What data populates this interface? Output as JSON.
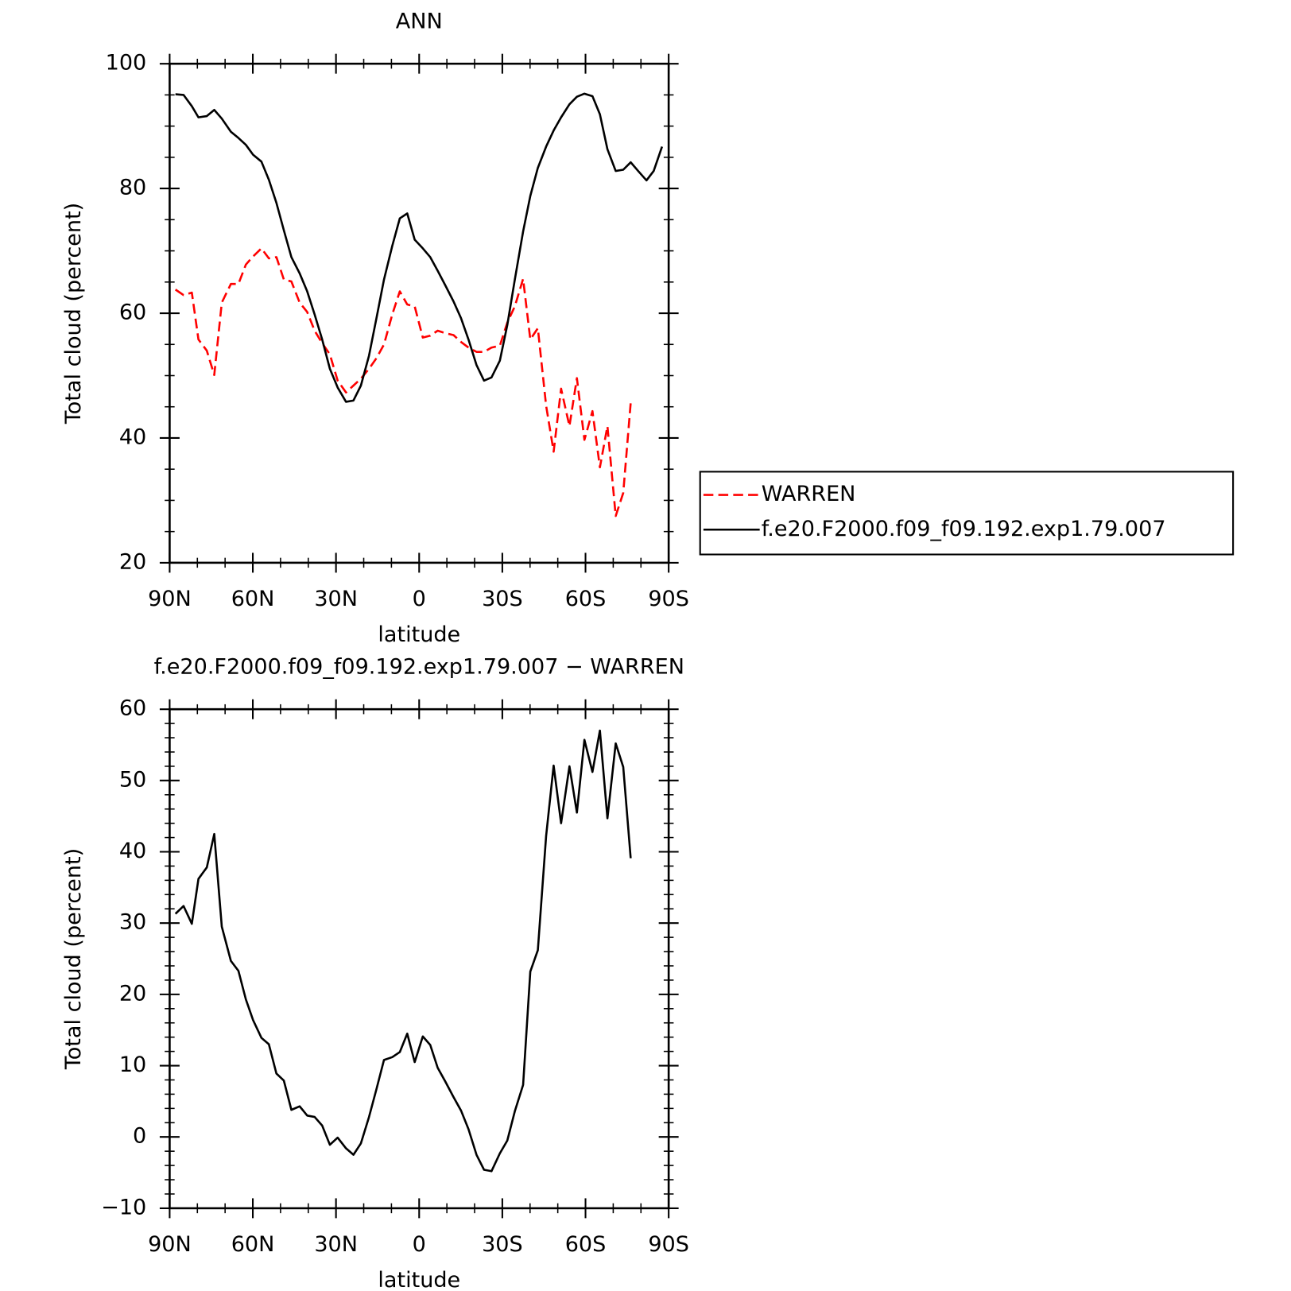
{
  "chart_data": [
    {
      "type": "line",
      "title": "ANN",
      "xlabel": "latitude",
      "ylabel": "Total cloud (percent)",
      "xlim": [
        90,
        -90
      ],
      "xticks": [
        {
          "value": 90,
          "label": "90N"
        },
        {
          "value": 60,
          "label": "60N"
        },
        {
          "value": 30,
          "label": "30N"
        },
        0,
        {
          "value": -30,
          "label": "30S"
        },
        {
          "value": -60,
          "label": "60S"
        },
        {
          "value": -90,
          "label": "90S"
        }
      ],
      "xminorticks": [
        80,
        70,
        50,
        40,
        20,
        10,
        -10,
        -20,
        -40,
        -50,
        -70,
        -80
      ],
      "ylim": [
        20,
        100
      ],
      "yticks": [
        20,
        40,
        60,
        80,
        100
      ],
      "yminorticks": [
        25,
        30,
        35,
        45,
        50,
        55,
        65,
        70,
        75,
        85,
        90,
        95
      ],
      "legend": "right",
      "series": [
        {
          "name": "WARREN",
          "color": "#ff0000",
          "line_style": "dashed",
          "x": [
            87.9,
            85.0,
            82.0,
            79.6,
            76.6,
            73.9,
            71.2,
            67.9,
            65.2,
            62.5,
            59.9,
            56.9,
            54.2,
            51.5,
            48.8,
            46.1,
            43.1,
            40.4,
            37.7,
            35.0,
            32.2,
            29.4,
            26.4,
            23.7,
            21.0,
            18.1,
            15.4,
            12.7,
            9.7,
            7.0,
            4.3,
            1.6,
            -1.3,
            -4.0,
            -6.7,
            -9.4,
            -12.4,
            -15.1,
            -17.8,
            -20.7,
            -23.4,
            -26.1,
            -29.1,
            -31.8,
            -34.5,
            -37.5,
            -40.1,
            -42.8,
            -45.8,
            -48.5,
            -51.2,
            -54.2,
            -56.9,
            -59.6,
            -62.5,
            -65.2,
            -67.9,
            -70.9,
            -73.6,
            -76.3
          ],
          "values": [
            63.8,
            62.9,
            63.3,
            55.8,
            54.0,
            50.1,
            61.7,
            64.7,
            64.7,
            67.8,
            69.1,
            70.4,
            68.8,
            69.0,
            65.4,
            65.1,
            61.7,
            60.2,
            57.2,
            55.2,
            53.4,
            49.2,
            47.3,
            48.4,
            49.5,
            51.1,
            52.8,
            55.0,
            59.8,
            63.5,
            61.4,
            61.1,
            56.1,
            56.4,
            57.2,
            56.8,
            56.5,
            55.4,
            54.5,
            53.8,
            53.8,
            54.5,
            54.8,
            58.5,
            61.1,
            65.5,
            55.8,
            57.6,
            45.2,
            37.8,
            47.9,
            41.9,
            49.6,
            39.7,
            44.3,
            35.3,
            41.9,
            27.5,
            31.2,
            45.6
          ]
        },
        {
          "name": "f.e20.F2000.f09_f09.192.exp1.79.007",
          "color": "#000000",
          "line_style": "solid",
          "x": [
            87.9,
            85.0,
            82.0,
            79.6,
            76.6,
            73.9,
            71.2,
            67.9,
            65.2,
            62.5,
            59.9,
            56.9,
            54.2,
            51.5,
            48.8,
            46.1,
            43.1,
            40.4,
            37.7,
            35.0,
            32.2,
            29.4,
            26.4,
            23.7,
            21.0,
            18.1,
            15.4,
            12.7,
            9.7,
            7.0,
            4.3,
            1.6,
            -1.3,
            -4.0,
            -6.7,
            -9.4,
            -12.4,
            -15.1,
            -17.8,
            -20.7,
            -23.4,
            -26.1,
            -29.1,
            -31.8,
            -34.5,
            -37.5,
            -40.1,
            -42.8,
            -45.8,
            -48.5,
            -51.2,
            -54.2,
            -56.9,
            -59.6,
            -62.5,
            -65.2,
            -67.9,
            -70.9,
            -73.6,
            -76.3,
            -79.0,
            -82.0,
            -84.6,
            -87.6
          ],
          "values": [
            95.1,
            95.0,
            93.2,
            91.4,
            91.6,
            92.6,
            91.2,
            89.1,
            88.1,
            87.0,
            85.4,
            84.3,
            81.4,
            77.7,
            73.3,
            69.0,
            66.4,
            63.5,
            59.8,
            55.8,
            51.1,
            48.1,
            45.8,
            46.0,
            48.4,
            53.2,
            59.2,
            65.4,
            70.8,
            75.2,
            76.0,
            71.8,
            70.4,
            69.0,
            66.8,
            64.5,
            61.9,
            59.2,
            55.8,
            51.7,
            49.2,
            49.7,
            52.4,
            58.1,
            65.4,
            73.1,
            78.8,
            83.3,
            86.7,
            89.3,
            91.4,
            93.5,
            94.7,
            95.2,
            94.8,
            91.9,
            86.3,
            82.8,
            83.0,
            84.2,
            82.8,
            81.3,
            82.8,
            86.7
          ]
        }
      ]
    },
    {
      "type": "line",
      "title": "f.e20.F2000.f09_f09.192.exp1.79.007 − WARREN",
      "xlabel": "latitude",
      "ylabel": "Total cloud (percent)",
      "xlim": [
        90,
        -90
      ],
      "xticks": [
        {
          "value": 90,
          "label": "90N"
        },
        {
          "value": 60,
          "label": "60N"
        },
        {
          "value": 30,
          "label": "30N"
        },
        0,
        {
          "value": -30,
          "label": "30S"
        },
        {
          "value": -60,
          "label": "60S"
        },
        {
          "value": -90,
          "label": "90S"
        }
      ],
      "xminorticks": [
        80,
        70,
        50,
        40,
        20,
        10,
        -10,
        -20,
        -40,
        -50,
        -70,
        -80
      ],
      "ylim": [
        -10,
        60
      ],
      "yticks": [
        {
          "value": -10,
          "label": "−10"
        },
        0,
        10,
        20,
        30,
        40,
        50,
        60
      ],
      "yminorticks": [
        -8,
        -6,
        -4,
        -2,
        2,
        4,
        6,
        8,
        12,
        14,
        16,
        18,
        22,
        24,
        26,
        28,
        32,
        34,
        36,
        38,
        42,
        44,
        46,
        48,
        52,
        54,
        56,
        58
      ],
      "color": "#000000",
      "x": [
        87.9,
        85.0,
        82.0,
        79.6,
        76.6,
        73.9,
        71.2,
        67.9,
        65.2,
        62.5,
        59.9,
        56.9,
        54.2,
        51.5,
        48.8,
        46.1,
        43.1,
        40.4,
        37.7,
        35.0,
        32.2,
        29.4,
        26.4,
        23.7,
        21.0,
        18.1,
        15.4,
        12.7,
        9.7,
        7.0,
        4.3,
        1.6,
        -1.3,
        -4.0,
        -6.7,
        -9.4,
        -12.4,
        -15.1,
        -17.8,
        -20.7,
        -23.4,
        -26.1,
        -29.1,
        -31.8,
        -34.5,
        -37.5,
        -40.1,
        -42.8,
        -45.8,
        -48.5,
        -51.2,
        -54.2,
        -56.9,
        -59.6,
        -62.5,
        -65.2,
        -67.9,
        -70.9,
        -73.6,
        -76.3
      ],
      "values": [
        31.3,
        32.4,
        29.9,
        36.2,
        37.8,
        42.5,
        29.5,
        24.7,
        23.3,
        19.3,
        16.4,
        13.9,
        13.0,
        8.9,
        7.9,
        3.8,
        4.3,
        3.0,
        2.8,
        1.6,
        -1.1,
        -0.1,
        -1.6,
        -2.5,
        -0.9,
        2.8,
        6.7,
        10.8,
        11.2,
        11.9,
        14.5,
        10.5,
        14.1,
        12.9,
        9.7,
        7.8,
        5.6,
        3.7,
        1.1,
        -2.5,
        -4.6,
        -4.8,
        -2.3,
        -0.5,
        3.6,
        7.3,
        23.2,
        26.2,
        42.2,
        52.1,
        44.0,
        52.0,
        45.5,
        55.7,
        51.2,
        57.0,
        44.7,
        55.2,
        51.9,
        39.1
      ]
    }
  ]
}
